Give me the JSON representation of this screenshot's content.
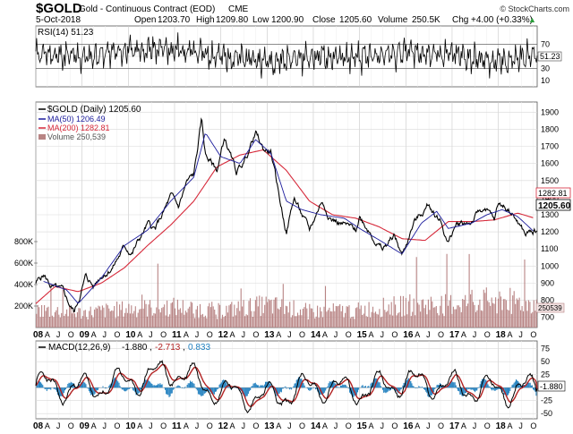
{
  "header": {
    "symbol": "$GOLD",
    "name": "Gold - Continuous Contract (EOD)",
    "exchange": "CME",
    "date": "5-Oct-2018",
    "open_label": "Open",
    "open": "1203.70",
    "high_label": "High",
    "high": "1209.80",
    "low_label": "Low",
    "low": "1200.90",
    "close_label": "Close",
    "close": "1205.60",
    "volume_label": "Volume",
    "volume": "250.5K",
    "chg_label": "Chg",
    "chg": "+4.00 (+0.33%)",
    "arrow": "▲",
    "watermark": "© StockCharts.com"
  },
  "colors": {
    "price": "#000000",
    "ma50": "#1c1c9c",
    "ma200": "#d6293a",
    "volume": "#b88484",
    "macd": "#000000",
    "macd_signal": "#b22222",
    "histogram": "#1f7fbf",
    "grid": "#d9d9d9"
  },
  "chart_data": [
    {
      "type": "line",
      "panel": "rsi",
      "legend": "RSI(14) 51.23",
      "current_value": "51.23",
      "ylim": [
        0,
        100
      ],
      "y_ticks": [
        "70",
        "50",
        "30",
        "10"
      ],
      "reference_lines": [
        70,
        30
      ],
      "series": [
        {
          "name": "RSI(14)",
          "x": [
            "2008",
            "2009",
            "2010",
            "2011",
            "2012",
            "2013",
            "2014",
            "2015",
            "2016",
            "2017",
            "2018",
            "2018-10-05"
          ],
          "values": [
            55,
            48,
            60,
            62,
            50,
            42,
            50,
            46,
            58,
            52,
            40,
            51.23
          ]
        }
      ]
    },
    {
      "type": "line",
      "panel": "price",
      "title": "$GOLD (Daily) 1205.60",
      "ylim": [
        640,
        1960
      ],
      "y_ticks": [
        "1900",
        "1800",
        "1700",
        "1600",
        "1500",
        "1400",
        "1300",
        "1200",
        "1100",
        "1000",
        "900",
        "800",
        "700"
      ],
      "left_ticks": [
        "800K",
        "600K",
        "400K",
        "200K"
      ],
      "price_labels": {
        "ma200": "1282.81",
        "close": "1205.60",
        "volume": "250539"
      },
      "x_year_labels": [
        "08",
        "09",
        "10",
        "11",
        "12",
        "13",
        "14",
        "15",
        "16",
        "17",
        "18"
      ],
      "x_month_labels": [
        "A",
        "J",
        "O"
      ],
      "series": [
        {
          "name": "$GOLD (Daily) 1205.60",
          "x": [
            "2008-01",
            "2008-03",
            "2008-05",
            "2008-08",
            "2008-10",
            "2008-11",
            "2009-02",
            "2009-04",
            "2009-06",
            "2009-09",
            "2009-12",
            "2010-02",
            "2010-06",
            "2010-08",
            "2010-12",
            "2011-02",
            "2011-04",
            "2011-06",
            "2011-08",
            "2011-09",
            "2011-12",
            "2012-02",
            "2012-05",
            "2012-07",
            "2012-10",
            "2012-12",
            "2013-02",
            "2013-04",
            "2013-06",
            "2013-08",
            "2013-12",
            "2014-03",
            "2014-06",
            "2014-09",
            "2014-12",
            "2015-01",
            "2015-04",
            "2015-07",
            "2015-10",
            "2015-12",
            "2016-03",
            "2016-07",
            "2016-10",
            "2016-12",
            "2017-02",
            "2017-06",
            "2017-09",
            "2017-12",
            "2018-01",
            "2018-04",
            "2018-06",
            "2018-08",
            "2018-10-05"
          ],
          "values": [
            900,
            950,
            880,
            840,
            760,
            730,
            940,
            880,
            950,
            1000,
            1110,
            1080,
            1240,
            1210,
            1400,
            1340,
            1480,
            1530,
            1850,
            1650,
            1560,
            1750,
            1540,
            1610,
            1780,
            1680,
            1670,
            1420,
            1200,
            1400,
            1200,
            1380,
            1280,
            1240,
            1200,
            1290,
            1200,
            1090,
            1180,
            1060,
            1250,
            1360,
            1270,
            1130,
            1240,
            1260,
            1340,
            1260,
            1360,
            1330,
            1260,
            1180,
            1205.6
          ]
        },
        {
          "name": "MA(50) 1206.49",
          "x": [
            "2008-03",
            "2008-09",
            "2008-12",
            "2009-06",
            "2009-12",
            "2010-06",
            "2010-12",
            "2011-06",
            "2011-09",
            "2012-01",
            "2012-06",
            "2012-10",
            "2013-02",
            "2013-06",
            "2013-10",
            "2014-03",
            "2014-09",
            "2015-01",
            "2015-07",
            "2015-12",
            "2016-05",
            "2016-09",
            "2016-12",
            "2017-06",
            "2017-10",
            "2018-02",
            "2018-06",
            "2018-10"
          ],
          "values": [
            910,
            860,
            780,
            930,
            1120,
            1210,
            1380,
            1520,
            1780,
            1640,
            1600,
            1740,
            1660,
            1380,
            1330,
            1300,
            1280,
            1220,
            1140,
            1070,
            1250,
            1320,
            1220,
            1250,
            1300,
            1330,
            1290,
            1206.49
          ]
        },
        {
          "name": "MA(200) 1282.81",
          "x": [
            "2008-01",
            "2008-06",
            "2008-12",
            "2009-06",
            "2009-12",
            "2010-06",
            "2010-12",
            "2011-06",
            "2011-12",
            "2012-06",
            "2012-12",
            "2013-06",
            "2013-12",
            "2014-06",
            "2014-12",
            "2015-06",
            "2015-12",
            "2016-06",
            "2016-12",
            "2017-06",
            "2017-12",
            "2018-06",
            "2018-10"
          ],
          "values": [
            780,
            880,
            850,
            900,
            990,
            1120,
            1240,
            1380,
            1580,
            1650,
            1680,
            1560,
            1380,
            1300,
            1280,
            1230,
            1160,
            1150,
            1260,
            1260,
            1270,
            1310,
            1282.81
          ]
        },
        {
          "name": "Volume 250,539",
          "x": [
            "2008",
            "2009",
            "2010",
            "2011",
            "2012",
            "2013",
            "2014",
            "2015",
            "2016",
            "2017",
            "2018",
            "2018-10-05"
          ],
          "values": [
            180000,
            150000,
            190000,
            210000,
            170000,
            230000,
            160000,
            180000,
            230000,
            240000,
            290000,
            250539
          ]
        }
      ]
    },
    {
      "type": "line",
      "panel": "macd",
      "legend_label": "MACD(12,26,9)",
      "legend_values": [
        "-1.880",
        "-2.713",
        "0.833"
      ],
      "current_value": "-1.880",
      "ylim": [
        -60,
        90
      ],
      "y_ticks": [
        "75",
        "50",
        "25",
        "0",
        "-25",
        "-50"
      ],
      "series": [
        {
          "name": "MACD(12,26,9)",
          "x": [
            "2008",
            "2009",
            "2010",
            "2011",
            "2012",
            "2013",
            "2014",
            "2015",
            "2016",
            "2017",
            "2018",
            "2018-10-05"
          ],
          "values": [
            10,
            -5,
            20,
            55,
            -15,
            -35,
            5,
            -10,
            20,
            5,
            -10,
            -1.88
          ]
        },
        {
          "name": "-2.713",
          "x": [
            "2008",
            "2009",
            "2010",
            "2011",
            "2012",
            "2013",
            "2014",
            "2015",
            "2016",
            "2017",
            "2018",
            "2018-10-05"
          ],
          "values": [
            8,
            -3,
            18,
            45,
            -10,
            -30,
            3,
            -8,
            18,
            4,
            -8,
            -2.713
          ]
        },
        {
          "name": "0.833",
          "x": [
            "2008",
            "2009",
            "2010",
            "2011",
            "2012",
            "2013",
            "2014",
            "2015",
            "2016",
            "2017",
            "2018",
            "2018-10-05"
          ],
          "values": [
            2,
            -2,
            2,
            10,
            -5,
            -5,
            2,
            -2,
            2,
            1,
            -2,
            0.833
          ]
        }
      ]
    }
  ]
}
